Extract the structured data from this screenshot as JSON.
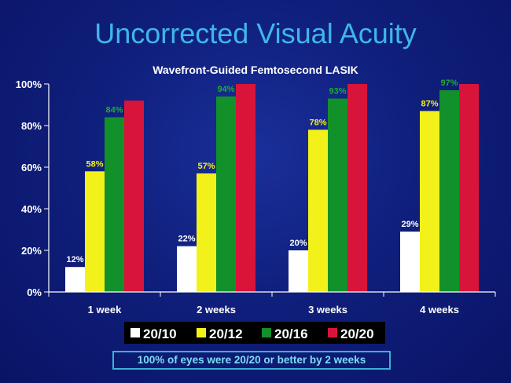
{
  "slide_title": "Uncorrected Visual Acuity",
  "footnote": "100% of eyes were 20/20 or better by 2 weeks",
  "chart_data": {
    "type": "bar",
    "title": "Wavefront-Guided Femtosecond LASIK",
    "xlabel": "",
    "ylabel": "",
    "categories": [
      "1 week",
      "2 weeks",
      "3 weeks",
      "4 weeks"
    ],
    "ylim": [
      0,
      100
    ],
    "yticks": [
      "0%",
      "20%",
      "40%",
      "60%",
      "80%",
      "100%"
    ],
    "series": [
      {
        "name": "20/10",
        "values": [
          12,
          22,
          20,
          29
        ],
        "labels": [
          "12%",
          "22%",
          "20%",
          "29%"
        ],
        "color": "#ffffff",
        "label_color": "#ffffff"
      },
      {
        "name": "20/12",
        "values": [
          58,
          57,
          78,
          87
        ],
        "labels": [
          "58%",
          "57%",
          "78%",
          "87%"
        ],
        "color": "#f2f21a",
        "label_color": "#f2f21a"
      },
      {
        "name": "20/16",
        "values": [
          84,
          94,
          93,
          97
        ],
        "labels": [
          "84%",
          "94%",
          "93%",
          "97%"
        ],
        "color": "#12902a",
        "label_color": "#22a83a"
      },
      {
        "name": "20/20",
        "values": [
          92,
          100,
          100,
          100
        ],
        "labels": [
          "",
          "",
          "",
          ""
        ],
        "color": "#d8143a",
        "label_color": "#ffffff"
      }
    ],
    "legend": "bottom",
    "grid": false
  }
}
